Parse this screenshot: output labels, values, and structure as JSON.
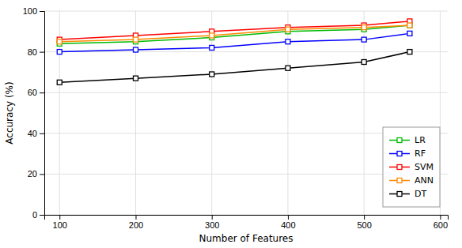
{
  "chart_data": {
    "type": "line",
    "xlabel": "Number of Features",
    "ylabel": "Accuracy (%)",
    "x": [
      100,
      200,
      300,
      400,
      500,
      560
    ],
    "series": [
      {
        "name": "LR",
        "color": "#00bb00",
        "values": [
          84,
          85,
          87,
          90,
          91,
          93
        ]
      },
      {
        "name": "RF",
        "color": "#0000ff",
        "values": [
          80,
          81,
          82,
          85,
          86,
          89
        ]
      },
      {
        "name": "SVM",
        "color": "#ff0000",
        "values": [
          86,
          88,
          90,
          92,
          93,
          95
        ]
      },
      {
        "name": "ANN",
        "color": "#ff8800",
        "values": [
          85,
          86,
          88,
          91,
          92,
          93
        ]
      },
      {
        "name": "DT",
        "color": "#000000",
        "values": [
          65,
          67,
          69,
          72,
          75,
          80
        ]
      }
    ],
    "xlim": [
      80,
      610
    ],
    "ylim": [
      0,
      100
    ],
    "xticks": [
      100,
      200,
      300,
      400,
      500,
      600
    ],
    "yticks": [
      0,
      20,
      40,
      60,
      80,
      100
    ],
    "grid": true,
    "legend": "lower right",
    "marker": "square"
  }
}
